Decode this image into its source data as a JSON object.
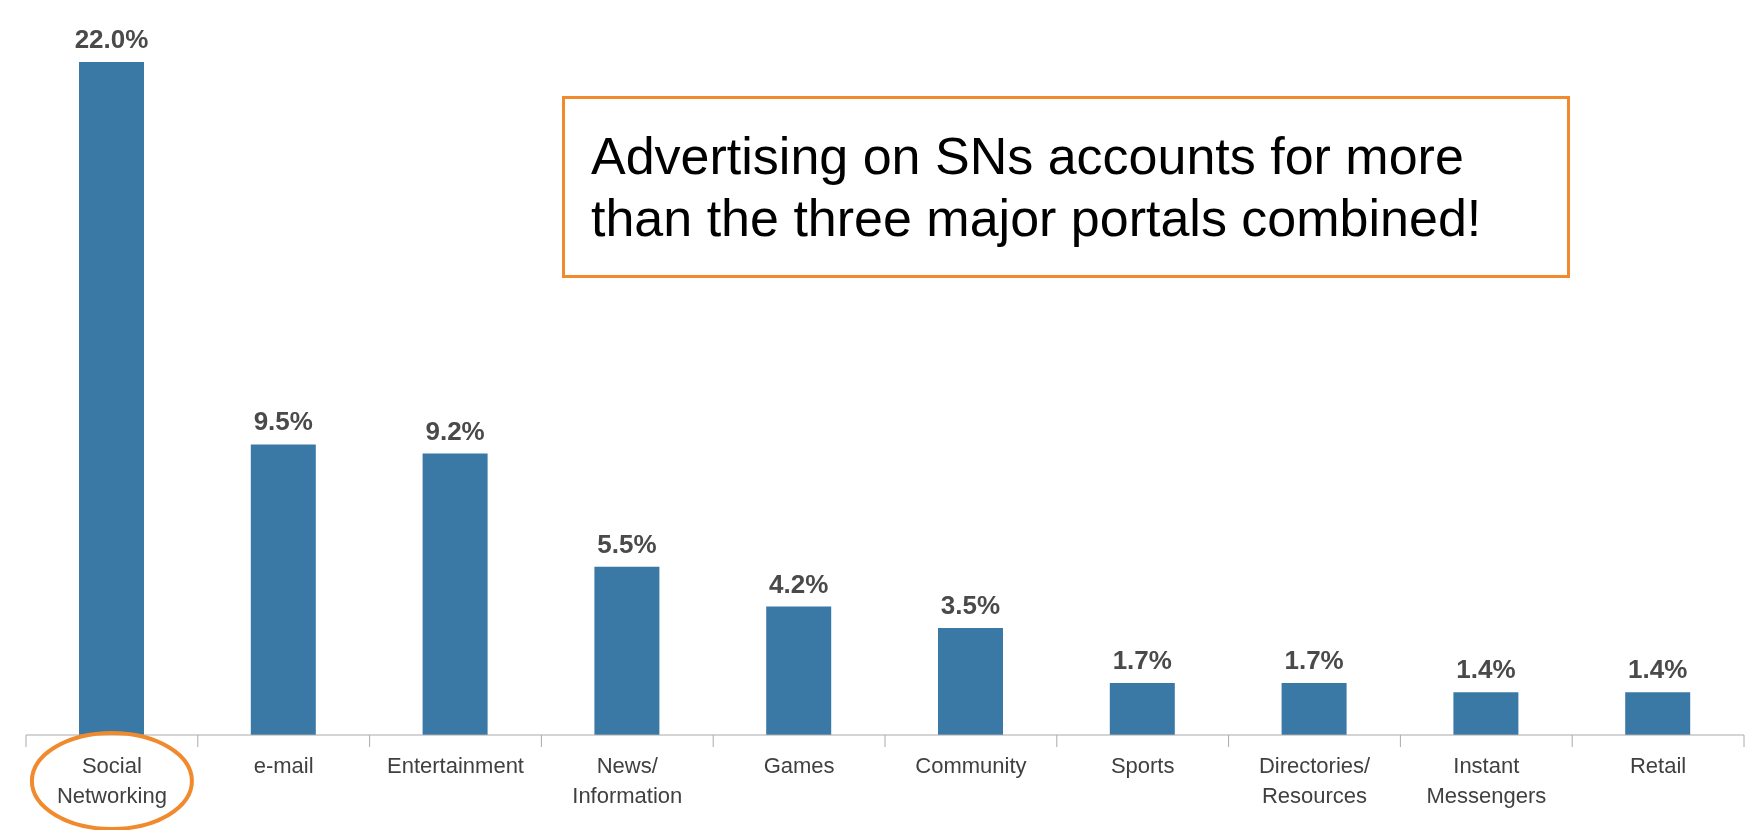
{
  "chart_data": {
    "type": "bar",
    "categories": [
      "Social Networking",
      "e-mail",
      "Entertainment",
      "News/Information",
      "Games",
      "Community",
      "Sports",
      "Directories/Resources",
      "Instant Messengers",
      "Retail"
    ],
    "values": [
      22.0,
      9.5,
      9.2,
      5.5,
      4.2,
      3.5,
      1.7,
      1.7,
      1.4,
      1.4
    ],
    "value_labels": [
      "22.0%",
      "9.5%",
      "9.2%",
      "5.5%",
      "4.2%",
      "3.5%",
      "1.7%",
      "1.7%",
      "1.4%",
      "1.4%"
    ],
    "color": "#3a78a5",
    "annotations": [
      "Advertising on SNs accounts for more than the three major portals combined!"
    ],
    "grid": false,
    "legend": false
  }
}
